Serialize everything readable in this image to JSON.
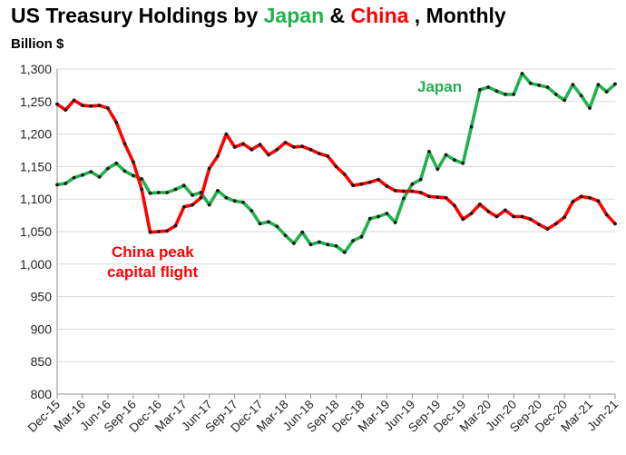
{
  "chart_data": {
    "type": "line",
    "title": {
      "parts": [
        {
          "text": "US Treasury Holdings by ",
          "color": "#000000"
        },
        {
          "text": "Japan",
          "color": "#22b14c"
        },
        {
          "text": " & ",
          "color": "#000000"
        },
        {
          "text": "China",
          "color": "#ff0000"
        },
        {
          "text": ", Monthly",
          "color": "#000000"
        }
      ]
    },
    "ylabel": "Billion $",
    "ylim": [
      800,
      1300
    ],
    "yticks": [
      "800",
      "850",
      "900",
      "950",
      "1,000",
      "1,050",
      "1,100",
      "1,150",
      "1,200",
      "1,250",
      "1,300"
    ],
    "ytick_values": [
      800,
      850,
      900,
      950,
      1000,
      1050,
      1100,
      1150,
      1200,
      1250,
      1300
    ],
    "x_start": "Dec-15",
    "x_end": "Jun-21",
    "xticks": [
      "Dec-15",
      "Mar-16",
      "Jun-16",
      "Sep-16",
      "Dec-16",
      "Mar-17",
      "Jun-17",
      "Sep-17",
      "Dec-17",
      "Mar-18",
      "Jun-18",
      "Sep-18",
      "Dec-18",
      "Mar-19",
      "Jun-19",
      "Sep-19",
      "Dec-19",
      "Mar-20",
      "Jun-20",
      "Sep-20",
      "Dec-20",
      "Mar-21",
      "Jun-21"
    ],
    "grid": true,
    "series": [
      {
        "name": "Japan",
        "color": "#22b14c",
        "values": [
          1122,
          1124,
          1133,
          1137,
          1142,
          1134,
          1147,
          1155,
          1143,
          1136,
          1131,
          1109,
          1110,
          1110,
          1115,
          1121,
          1106,
          1110,
          1091,
          1113,
          1102,
          1097,
          1095,
          1082,
          1062,
          1065,
          1058,
          1044,
          1032,
          1049,
          1030,
          1034,
          1030,
          1028,
          1018,
          1036,
          1042,
          1070,
          1073,
          1078,
          1064,
          1101,
          1123,
          1130,
          1173,
          1146,
          1168,
          1160,
          1155,
          1211,
          1268,
          1272,
          1266,
          1261,
          1261,
          1293,
          1278,
          1275,
          1272,
          1261,
          1252,
          1276,
          1259,
          1240,
          1276,
          1265,
          1277
        ]
      },
      {
        "name": "China",
        "color": "#ff0000",
        "values": [
          1246,
          1237,
          1252,
          1244,
          1243,
          1244,
          1240,
          1218,
          1185,
          1157,
          1115,
          1049,
          1050,
          1051,
          1059,
          1088,
          1091,
          1102,
          1147,
          1166,
          1200,
          1180,
          1185,
          1176,
          1184,
          1168,
          1176,
          1187,
          1180,
          1181,
          1176,
          1170,
          1166,
          1150,
          1138,
          1121,
          1123,
          1126,
          1130,
          1120,
          1113,
          1112,
          1112,
          1110,
          1104,
          1103,
          1102,
          1090,
          1069,
          1078,
          1092,
          1081,
          1073,
          1083,
          1073,
          1073,
          1069,
          1061,
          1054,
          1062,
          1072,
          1096,
          1104,
          1102,
          1097,
          1076,
          1062
        ]
      }
    ],
    "annotations": [
      {
        "lines": [
          "China peak",
          "capital flight"
        ],
        "color": "#ff0000"
      },
      {
        "lines": [
          "Japan"
        ],
        "color": "#22b14c"
      }
    ]
  }
}
